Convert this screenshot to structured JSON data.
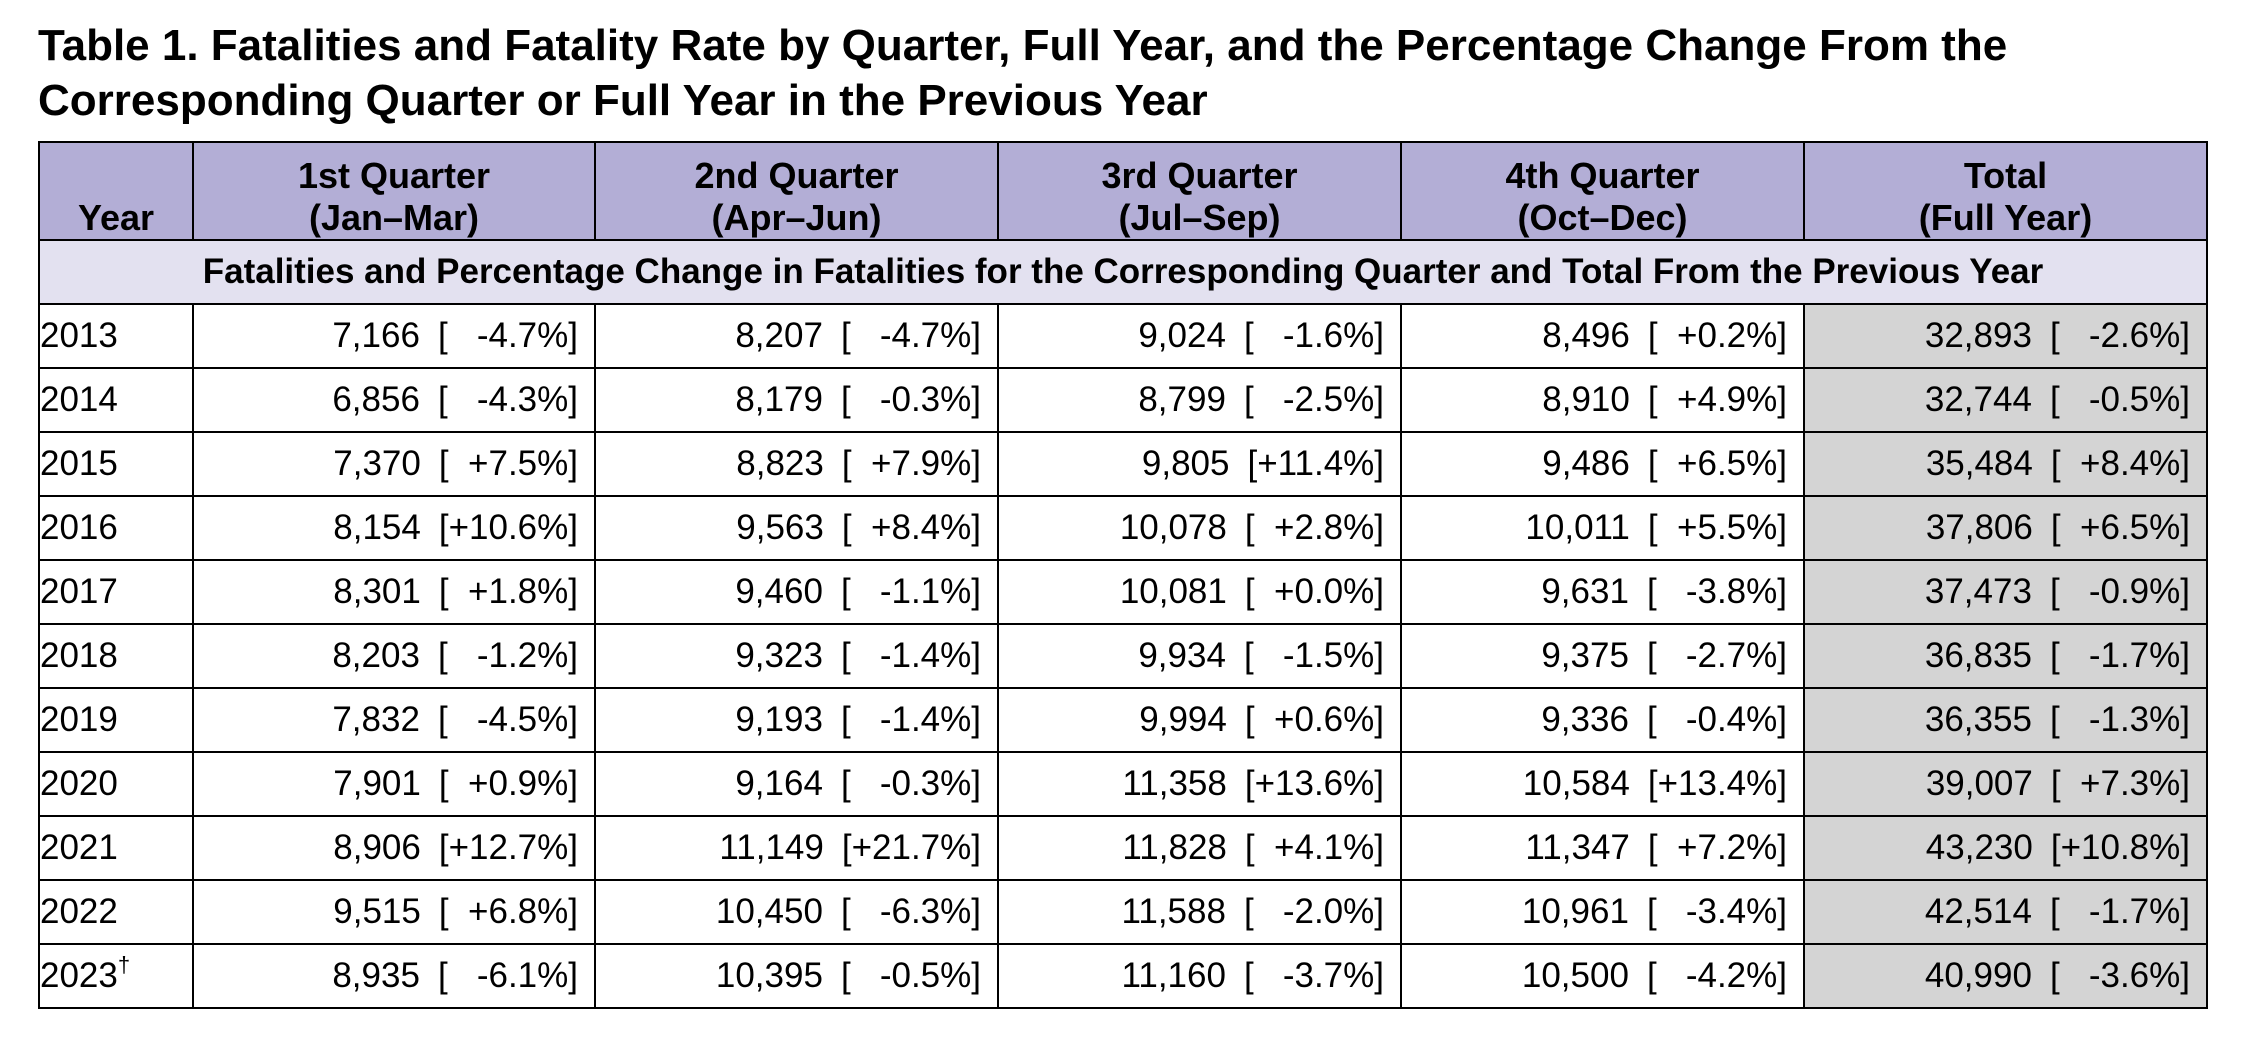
{
  "title": "Table 1. Fatalities and Fatality Rate by Quarter, Full Year, and the Percentage Change From the Corresponding Quarter or Full Year in the Previous Year",
  "headers": [
    {
      "line1": "",
      "line2": "Year"
    },
    {
      "line1": "1st Quarter",
      "line2": "(Jan–Mar)"
    },
    {
      "line1": "2nd Quarter",
      "line2": "(Apr–Jun)"
    },
    {
      "line1": "3rd Quarter",
      "line2": "(Jul–Sep)"
    },
    {
      "line1": "4th Quarter",
      "line2": "(Oct–Dec)"
    },
    {
      "line1": "Total",
      "line2": "(Full Year)"
    }
  ],
  "section_label": "Fatalities and Percentage Change in Fatalities for the Corresponding Quarter and Total From the Previous Year",
  "rows": [
    {
      "year": "2013",
      "mark": "",
      "cells": [
        {
          "n": "7,166",
          "p": "[   -4.7%]"
        },
        {
          "n": "8,207",
          "p": "[   -4.7%]"
        },
        {
          "n": "9,024",
          "p": "[   -1.6%]"
        },
        {
          "n": "8,496",
          "p": "[  +0.2%]"
        },
        {
          "n": "32,893",
          "p": "[   -2.6%]"
        }
      ]
    },
    {
      "year": "2014",
      "mark": "",
      "cells": [
        {
          "n": "6,856",
          "p": "[   -4.3%]"
        },
        {
          "n": "8,179",
          "p": "[   -0.3%]"
        },
        {
          "n": "8,799",
          "p": "[   -2.5%]"
        },
        {
          "n": "8,910",
          "p": "[  +4.9%]"
        },
        {
          "n": "32,744",
          "p": "[   -0.5%]"
        }
      ]
    },
    {
      "year": "2015",
      "mark": "",
      "cells": [
        {
          "n": "7,370",
          "p": "[  +7.5%]"
        },
        {
          "n": "8,823",
          "p": "[  +7.9%]"
        },
        {
          "n": "9,805",
          "p": "[+11.4%]"
        },
        {
          "n": "9,486",
          "p": "[  +6.5%]"
        },
        {
          "n": "35,484",
          "p": "[  +8.4%]"
        }
      ]
    },
    {
      "year": "2016",
      "mark": "",
      "cells": [
        {
          "n": "8,154",
          "p": "[+10.6%]"
        },
        {
          "n": "9,563",
          "p": "[  +8.4%]"
        },
        {
          "n": "10,078",
          "p": "[  +2.8%]"
        },
        {
          "n": "10,011",
          "p": "[  +5.5%]"
        },
        {
          "n": "37,806",
          "p": "[  +6.5%]"
        }
      ]
    },
    {
      "year": "2017",
      "mark": "",
      "cells": [
        {
          "n": "8,301",
          "p": "[  +1.8%]"
        },
        {
          "n": "9,460",
          "p": "[   -1.1%]"
        },
        {
          "n": "10,081",
          "p": "[  +0.0%]"
        },
        {
          "n": "9,631",
          "p": "[   -3.8%]"
        },
        {
          "n": "37,473",
          "p": "[   -0.9%]"
        }
      ]
    },
    {
      "year": "2018",
      "mark": "",
      "cells": [
        {
          "n": "8,203",
          "p": "[   -1.2%]"
        },
        {
          "n": "9,323",
          "p": "[   -1.4%]"
        },
        {
          "n": "9,934",
          "p": "[   -1.5%]"
        },
        {
          "n": "9,375",
          "p": "[   -2.7%]"
        },
        {
          "n": "36,835",
          "p": "[   -1.7%]"
        }
      ]
    },
    {
      "year": "2019",
      "mark": "",
      "cells": [
        {
          "n": "7,832",
          "p": "[   -4.5%]"
        },
        {
          "n": "9,193",
          "p": "[   -1.4%]"
        },
        {
          "n": "9,994",
          "p": "[  +0.6%]"
        },
        {
          "n": "9,336",
          "p": "[   -0.4%]"
        },
        {
          "n": "36,355",
          "p": "[   -1.3%]"
        }
      ]
    },
    {
      "year": "2020",
      "mark": "",
      "cells": [
        {
          "n": "7,901",
          "p": "[  +0.9%]"
        },
        {
          "n": "9,164",
          "p": "[   -0.3%]"
        },
        {
          "n": "11,358",
          "p": "[+13.6%]"
        },
        {
          "n": "10,584",
          "p": "[+13.4%]"
        },
        {
          "n": "39,007",
          "p": "[  +7.3%]"
        }
      ]
    },
    {
      "year": "2021",
      "mark": "",
      "cells": [
        {
          "n": "8,906",
          "p": "[+12.7%]"
        },
        {
          "n": "11,149",
          "p": "[+21.7%]"
        },
        {
          "n": "11,828",
          "p": "[  +4.1%]"
        },
        {
          "n": "11,347",
          "p": "[  +7.2%]"
        },
        {
          "n": "43,230",
          "p": "[+10.8%]"
        }
      ]
    },
    {
      "year": "2022",
      "mark": "",
      "cells": [
        {
          "n": "9,515",
          "p": "[  +6.8%]"
        },
        {
          "n": "10,450",
          "p": "[   -6.3%]"
        },
        {
          "n": "11,588",
          "p": "[   -2.0%]"
        },
        {
          "n": "10,961",
          "p": "[   -3.4%]"
        },
        {
          "n": "42,514",
          "p": "[   -1.7%]"
        }
      ]
    },
    {
      "year": "2023",
      "mark": "†",
      "cells": [
        {
          "n": "8,935",
          "p": "[   -6.1%]"
        },
        {
          "n": "10,395",
          "p": "[   -0.5%]"
        },
        {
          "n": "11,160",
          "p": "[   -3.7%]"
        },
        {
          "n": "10,500",
          "p": "[   -4.2%]"
        },
        {
          "n": "40,990",
          "p": "[   -3.6%]"
        }
      ]
    }
  ],
  "colors": {
    "header_bg": "#b3aed6",
    "section_bg": "#e3e1f0",
    "total_bg": "#d4d4d4"
  }
}
